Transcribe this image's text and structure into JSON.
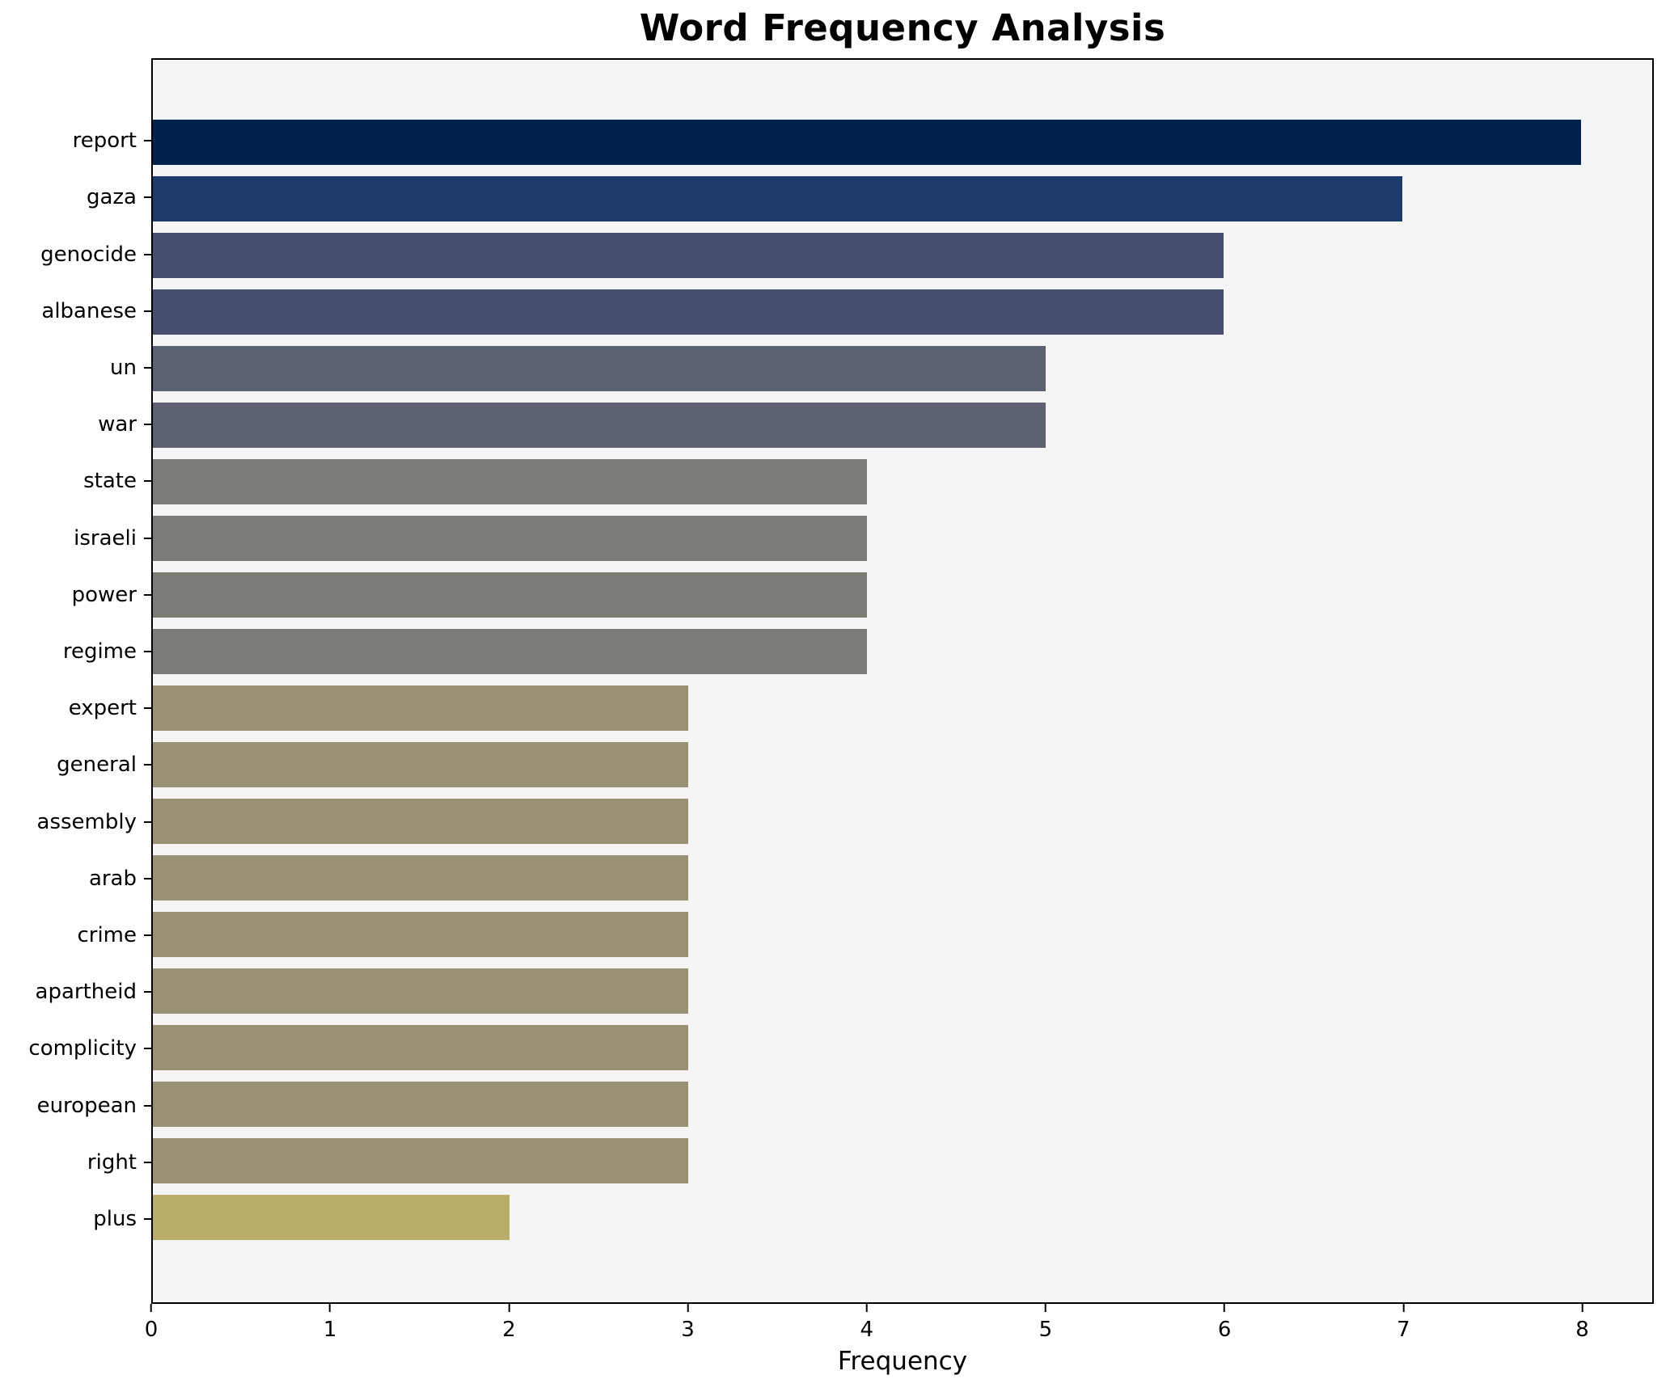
{
  "chart_data": {
    "type": "bar",
    "orientation": "horizontal",
    "title": "Word Frequency Analysis",
    "xlabel": "Frequency",
    "ylabel": "",
    "categories": [
      "report",
      "gaza",
      "genocide",
      "albanese",
      "un",
      "war",
      "state",
      "israeli",
      "power",
      "regime",
      "expert",
      "general",
      "assembly",
      "arab",
      "crime",
      "apartheid",
      "complicity",
      "european",
      "right",
      "plus"
    ],
    "values": [
      8,
      7,
      6,
      6,
      5,
      5,
      4,
      4,
      4,
      4,
      3,
      3,
      3,
      3,
      3,
      3,
      3,
      3,
      3,
      2
    ],
    "bar_colors": [
      "#02224e",
      "#1d3a6d",
      "#46506e",
      "#46506e",
      "#5c6270",
      "#5c6270",
      "#7c7b76",
      "#7c7b76",
      "#7c7b76",
      "#7c7b76",
      "#9a9174",
      "#9a9174",
      "#9a9174",
      "#9a9174",
      "#9a9174",
      "#9a9174",
      "#9a9174",
      "#9a9174",
      "#9a9174",
      "#b9ad6c"
    ],
    "x_ticks": [
      0,
      1,
      2,
      3,
      4,
      5,
      6,
      7,
      8
    ],
    "xlim": [
      0,
      8.4
    ],
    "grid": false,
    "legend": "none",
    "colors": {
      "plot_background": "#f5f5f6",
      "figure_background": "#ffffff",
      "spine": "#000000",
      "text": "#000000"
    }
  }
}
